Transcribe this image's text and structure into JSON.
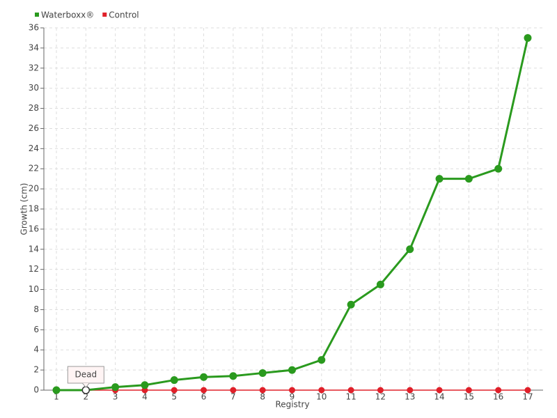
{
  "chart_data": {
    "type": "line",
    "categories": [
      "1",
      "2",
      "3",
      "4",
      "5",
      "6",
      "7",
      "8",
      "9",
      "10",
      "11",
      "12",
      "13",
      "14",
      "15",
      "16",
      "17"
    ],
    "series": [
      {
        "name": "Waterboxx®",
        "color": "#2a9a1e",
        "values": [
          0,
          0,
          0.3,
          0.5,
          1,
          1.3,
          1.4,
          1.7,
          2,
          3,
          8.5,
          10.5,
          14,
          21,
          21,
          22,
          35
        ]
      },
      {
        "name": "Control",
        "color": "#e0202a",
        "values": [
          0,
          0,
          0,
          0,
          0,
          0,
          0,
          0,
          0,
          0,
          0,
          0,
          0,
          0,
          0,
          0,
          0
        ]
      }
    ],
    "x_label": "Registry",
    "y_label": "Growth (cm)",
    "ylim": [
      0,
      36
    ],
    "yticks": [
      0,
      2,
      4,
      6,
      8,
      10,
      12,
      14,
      16,
      18,
      20,
      22,
      24,
      26,
      28,
      30,
      32,
      34,
      36
    ],
    "grid": true,
    "legend": "top-left",
    "annotation": "Dead"
  }
}
